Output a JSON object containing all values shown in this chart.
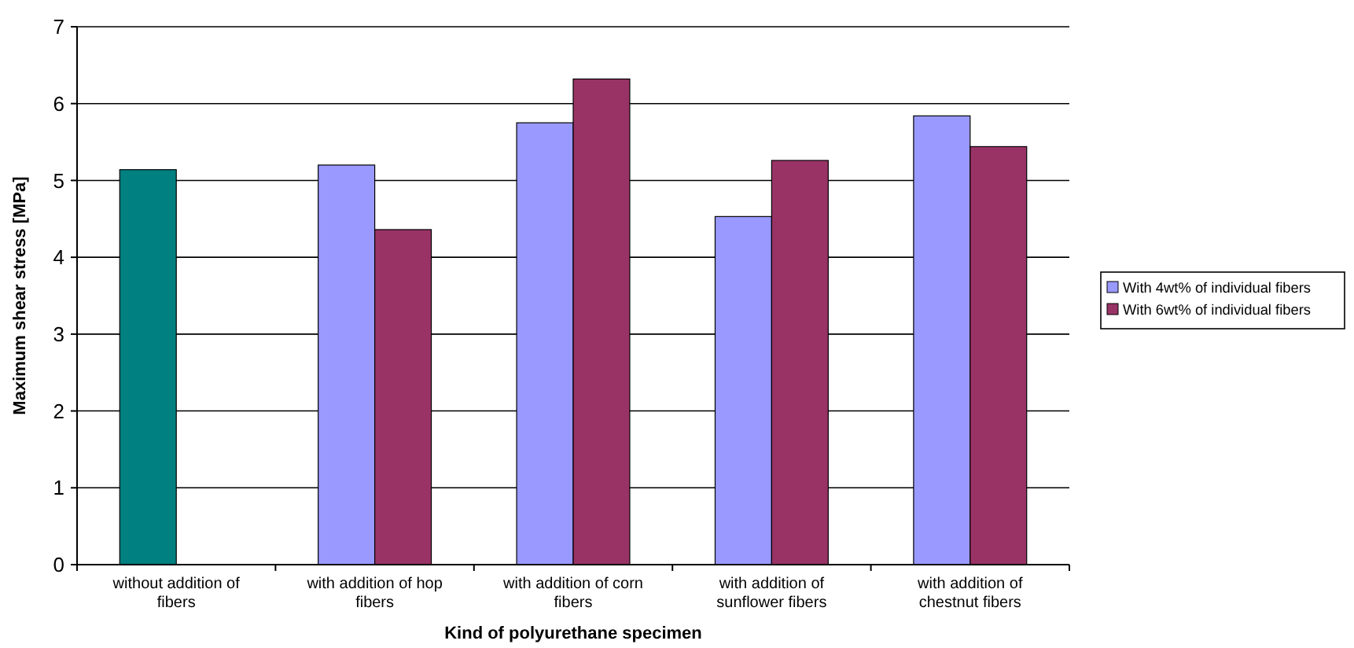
{
  "chart_data": {
    "type": "bar",
    "xlabel": "Kind of polyurethane specimen",
    "ylabel": "Maximum shear stress [MPa]",
    "categories": [
      "without addition of fibers",
      "with addition of hop fibers",
      "with addition of corn fibers",
      "with addition of sunflower fibers",
      "with addition of chestnut fibers"
    ],
    "series": [
      {
        "name": "With 4wt% of individual fibers",
        "color": "#9999ff",
        "colors": [
          "#008080",
          "#9999ff",
          "#9999ff",
          "#9999ff",
          "#9999ff"
        ],
        "values": [
          5.14,
          5.2,
          5.75,
          4.53,
          5.84
        ]
      },
      {
        "name": "With 6wt% of individual fibers",
        "color": "#993366",
        "values": [
          null,
          4.36,
          6.32,
          5.26,
          5.44
        ]
      }
    ],
    "ylim": [
      0,
      7
    ],
    "yticks": [
      0,
      1,
      2,
      3,
      4,
      5,
      6,
      7
    ],
    "grid": "y",
    "legend": "right"
  }
}
